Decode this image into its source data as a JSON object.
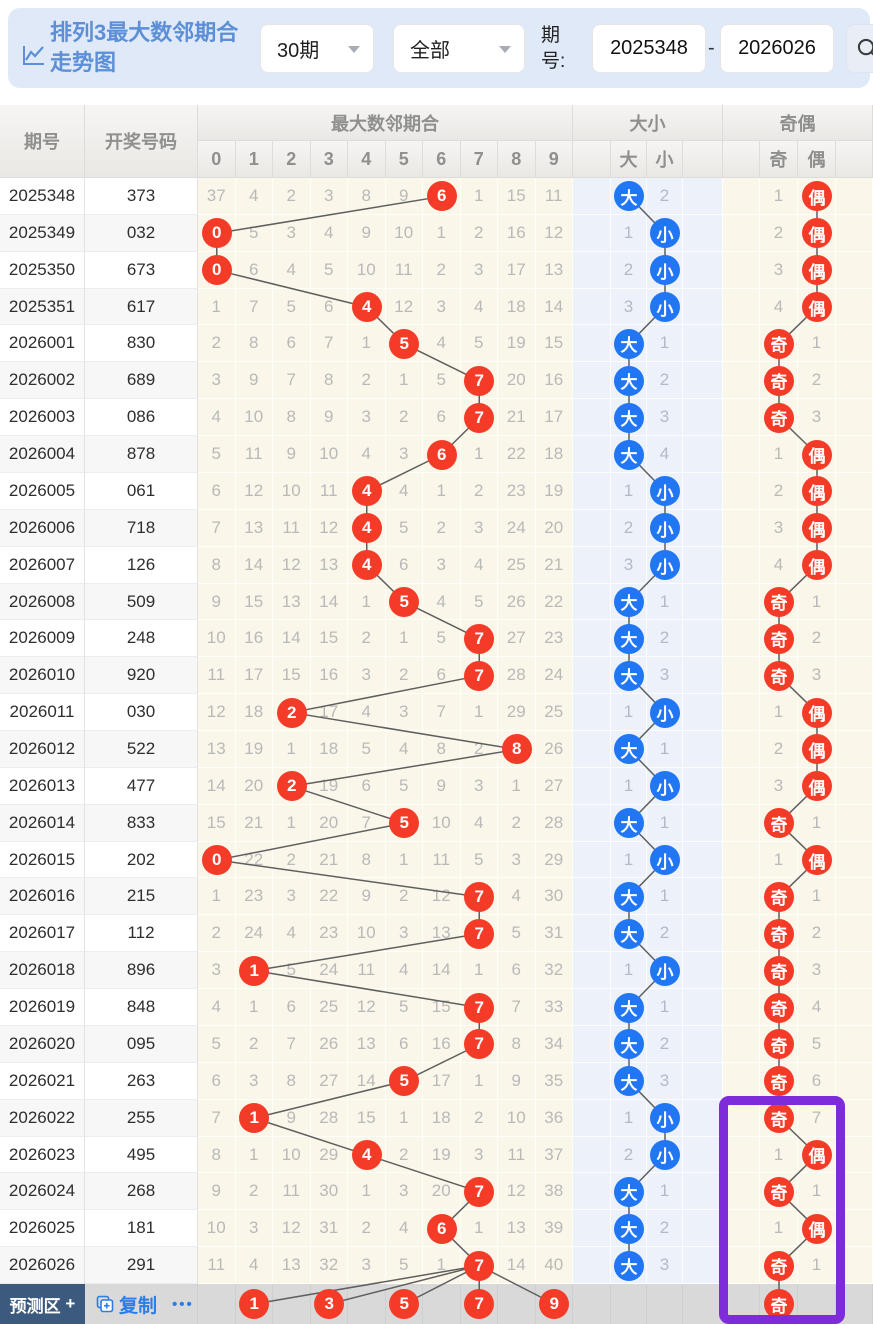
{
  "header": {
    "title_line1": "排列3最大数邻期合",
    "title_line2": "走势图",
    "period_select": "30期",
    "filter_select": "全部",
    "range_label": "期号:",
    "range_start": "2025348",
    "range_separator": "-",
    "range_end": "2026026"
  },
  "icons": {
    "title_icon": "line-chart",
    "select_caret": "caret-down",
    "search": "magnifier",
    "copy": "copy-pages"
  },
  "columns": {
    "period": "期号",
    "draw_number": "开奖号码",
    "group_main": "最大数邻期合",
    "group_size": "大小",
    "group_parity": "奇偶",
    "numbers": [
      "0",
      "1",
      "2",
      "3",
      "4",
      "5",
      "6",
      "7",
      "8",
      "9"
    ],
    "big": "大",
    "small": "小",
    "odd": "奇",
    "even": "偶"
  },
  "rows": [
    {
      "period": "2025348",
      "draw": "373",
      "misses": [
        37,
        4,
        2,
        3,
        8,
        9,
        6,
        1,
        15,
        11
      ],
      "hit": 6,
      "size": "大",
      "size_miss": 2,
      "parity": "偶",
      "parity_miss": 1
    },
    {
      "period": "2025349",
      "draw": "032",
      "misses": [
        0,
        5,
        3,
        4,
        9,
        10,
        1,
        2,
        16,
        12
      ],
      "hit": 0,
      "size": "小",
      "size_miss": 1,
      "parity": "偶",
      "parity_miss": 2
    },
    {
      "period": "2025350",
      "draw": "673",
      "misses": [
        0,
        6,
        4,
        5,
        10,
        11,
        2,
        3,
        17,
        13
      ],
      "hit": 0,
      "size": "小",
      "size_miss": 2,
      "parity": "偶",
      "parity_miss": 3
    },
    {
      "period": "2025351",
      "draw": "617",
      "misses": [
        1,
        7,
        5,
        6,
        4,
        12,
        3,
        4,
        18,
        14
      ],
      "hit": 4,
      "size": "小",
      "size_miss": 3,
      "parity": "偶",
      "parity_miss": 4
    },
    {
      "period": "2026001",
      "draw": "830",
      "misses": [
        2,
        8,
        6,
        7,
        1,
        5,
        4,
        5,
        19,
        15
      ],
      "hit": 5,
      "size": "大",
      "size_miss": 1,
      "parity": "奇",
      "parity_miss": 1
    },
    {
      "period": "2026002",
      "draw": "689",
      "misses": [
        3,
        9,
        7,
        8,
        2,
        1,
        5,
        7,
        20,
        16
      ],
      "hit": 7,
      "size": "大",
      "size_miss": 2,
      "parity": "奇",
      "parity_miss": 2
    },
    {
      "period": "2026003",
      "draw": "086",
      "misses": [
        4,
        10,
        8,
        9,
        3,
        2,
        6,
        7,
        21,
        17
      ],
      "hit": 7,
      "size": "大",
      "size_miss": 3,
      "parity": "奇",
      "parity_miss": 3
    },
    {
      "period": "2026004",
      "draw": "878",
      "misses": [
        5,
        11,
        9,
        10,
        4,
        3,
        6,
        1,
        22,
        18
      ],
      "hit": 6,
      "size": "大",
      "size_miss": 4,
      "parity": "偶",
      "parity_miss": 1
    },
    {
      "period": "2026005",
      "draw": "061",
      "misses": [
        6,
        12,
        10,
        11,
        4,
        4,
        1,
        2,
        23,
        19
      ],
      "hit": 4,
      "size": "小",
      "size_miss": 1,
      "parity": "偶",
      "parity_miss": 2
    },
    {
      "period": "2026006",
      "draw": "718",
      "misses": [
        7,
        13,
        11,
        12,
        4,
        5,
        2,
        3,
        24,
        20
      ],
      "hit": 4,
      "size": "小",
      "size_miss": 2,
      "parity": "偶",
      "parity_miss": 3
    },
    {
      "period": "2026007",
      "draw": "126",
      "misses": [
        8,
        14,
        12,
        13,
        4,
        6,
        3,
        4,
        25,
        21
      ],
      "hit": 4,
      "size": "小",
      "size_miss": 3,
      "parity": "偶",
      "parity_miss": 4
    },
    {
      "period": "2026008",
      "draw": "509",
      "misses": [
        9,
        15,
        13,
        14,
        1,
        5,
        4,
        5,
        26,
        22
      ],
      "hit": 5,
      "size": "大",
      "size_miss": 1,
      "parity": "奇",
      "parity_miss": 1
    },
    {
      "period": "2026009",
      "draw": "248",
      "misses": [
        10,
        16,
        14,
        15,
        2,
        1,
        5,
        7,
        27,
        23
      ],
      "hit": 7,
      "size": "大",
      "size_miss": 2,
      "parity": "奇",
      "parity_miss": 2
    },
    {
      "period": "2026010",
      "draw": "920",
      "misses": [
        11,
        17,
        15,
        16,
        3,
        2,
        6,
        7,
        28,
        24
      ],
      "hit": 7,
      "size": "大",
      "size_miss": 3,
      "parity": "奇",
      "parity_miss": 3
    },
    {
      "period": "2026011",
      "draw": "030",
      "misses": [
        12,
        18,
        2,
        17,
        4,
        3,
        7,
        1,
        29,
        25
      ],
      "hit": 2,
      "size": "小",
      "size_miss": 1,
      "parity": "偶",
      "parity_miss": 1
    },
    {
      "period": "2026012",
      "draw": "522",
      "misses": [
        13,
        19,
        1,
        18,
        5,
        4,
        8,
        2,
        8,
        26
      ],
      "hit": 8,
      "size": "大",
      "size_miss": 1,
      "parity": "偶",
      "parity_miss": 2
    },
    {
      "period": "2026013",
      "draw": "477",
      "misses": [
        14,
        20,
        2,
        19,
        6,
        5,
        9,
        3,
        1,
        27
      ],
      "hit": 2,
      "size": "小",
      "size_miss": 1,
      "parity": "偶",
      "parity_miss": 3
    },
    {
      "period": "2026014",
      "draw": "833",
      "misses": [
        15,
        21,
        1,
        20,
        7,
        5,
        10,
        4,
        2,
        28
      ],
      "hit": 5,
      "size": "大",
      "size_miss": 1,
      "parity": "奇",
      "parity_miss": 1
    },
    {
      "period": "2026015",
      "draw": "202",
      "misses": [
        0,
        22,
        2,
        21,
        8,
        1,
        11,
        5,
        3,
        29
      ],
      "hit": 0,
      "size": "小",
      "size_miss": 1,
      "parity": "偶",
      "parity_miss": 1
    },
    {
      "period": "2026016",
      "draw": "215",
      "misses": [
        1,
        23,
        3,
        22,
        9,
        2,
        12,
        7,
        4,
        30
      ],
      "hit": 7,
      "size": "大",
      "size_miss": 1,
      "parity": "奇",
      "parity_miss": 1
    },
    {
      "period": "2026017",
      "draw": "112",
      "misses": [
        2,
        24,
        4,
        23,
        10,
        3,
        13,
        7,
        5,
        31
      ],
      "hit": 7,
      "size": "大",
      "size_miss": 2,
      "parity": "奇",
      "parity_miss": 2
    },
    {
      "period": "2026018",
      "draw": "896",
      "misses": [
        3,
        1,
        5,
        24,
        11,
        4,
        14,
        1,
        6,
        32
      ],
      "hit": 1,
      "size": "小",
      "size_miss": 1,
      "parity": "奇",
      "parity_miss": 3
    },
    {
      "period": "2026019",
      "draw": "848",
      "misses": [
        4,
        1,
        6,
        25,
        12,
        5,
        15,
        7,
        7,
        33
      ],
      "hit": 7,
      "size": "大",
      "size_miss": 1,
      "parity": "奇",
      "parity_miss": 4
    },
    {
      "period": "2026020",
      "draw": "095",
      "misses": [
        5,
        2,
        7,
        26,
        13,
        6,
        16,
        7,
        8,
        34
      ],
      "hit": 7,
      "size": "大",
      "size_miss": 2,
      "parity": "奇",
      "parity_miss": 5
    },
    {
      "period": "2026021",
      "draw": "263",
      "misses": [
        6,
        3,
        8,
        27,
        14,
        5,
        17,
        1,
        9,
        35
      ],
      "hit": 5,
      "size": "大",
      "size_miss": 3,
      "parity": "奇",
      "parity_miss": 6
    },
    {
      "period": "2026022",
      "draw": "255",
      "misses": [
        7,
        1,
        9,
        28,
        15,
        1,
        18,
        2,
        10,
        36
      ],
      "hit": 1,
      "size": "小",
      "size_miss": 1,
      "parity": "奇",
      "parity_miss": 7
    },
    {
      "period": "2026023",
      "draw": "495",
      "misses": [
        8,
        1,
        10,
        29,
        4,
        2,
        19,
        3,
        11,
        37
      ],
      "hit": 4,
      "size": "小",
      "size_miss": 2,
      "parity": "偶",
      "parity_miss": 1
    },
    {
      "period": "2026024",
      "draw": "268",
      "misses": [
        9,
        2,
        11,
        30,
        1,
        3,
        20,
        7,
        12,
        38
      ],
      "hit": 7,
      "size": "大",
      "size_miss": 1,
      "parity": "奇",
      "parity_miss": 1
    },
    {
      "period": "2026025",
      "draw": "181",
      "misses": [
        10,
        3,
        12,
        31,
        2,
        4,
        6,
        1,
        13,
        39
      ],
      "hit": 6,
      "size": "大",
      "size_miss": 2,
      "parity": "偶",
      "parity_miss": 1
    },
    {
      "period": "2026026",
      "draw": "291",
      "misses": [
        11,
        4,
        13,
        32,
        3,
        5,
        1,
        7,
        14,
        40
      ],
      "hit": 7,
      "size": "大",
      "size_miss": 3,
      "parity": "奇",
      "parity_miss": 1
    }
  ],
  "footer": {
    "predict_label": "预测区",
    "predict_plus": "+",
    "copy_label": "复制",
    "more_label": "•••",
    "predictions": [
      1,
      3,
      5,
      7,
      9
    ],
    "parity_prediction": "奇"
  },
  "colors": {
    "red_circle": "#f43b28",
    "blue_circle": "#2176f3",
    "purple_box": "#7e2cd9",
    "topbar_bg": "#dfe9f8",
    "title_blue": "#5d8fd6",
    "predict_btn_bg": "#3b5a7d",
    "link_blue": "#2b7de9",
    "cream_bg": "#faf6e9",
    "lightblue_bg": "#edf2fa",
    "trend_line": "#5f5f5f"
  }
}
